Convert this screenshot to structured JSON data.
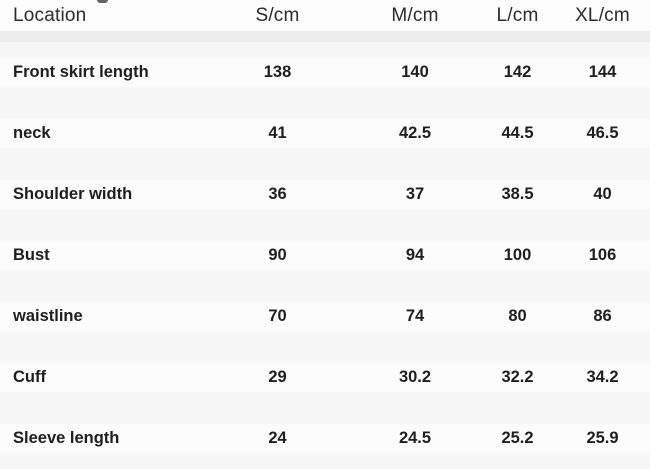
{
  "table": {
    "columns": [
      "Location",
      "S/cm",
      "M/cm",
      "L/cm",
      "XL/cm"
    ],
    "rows": [
      {
        "label": "Front skirt length",
        "values": [
          "138",
          "140",
          "142",
          "144"
        ]
      },
      {
        "label": "neck",
        "values": [
          "41",
          "42.5",
          "44.5",
          "46.5"
        ]
      },
      {
        "label": "Shoulder width",
        "values": [
          "36",
          "37",
          "38.5",
          "40"
        ]
      },
      {
        "label": "Bust",
        "values": [
          "90",
          "94",
          "100",
          "106"
        ]
      },
      {
        "label": "waistline",
        "values": [
          "70",
          "74",
          "80",
          "86"
        ]
      },
      {
        "label": "Cuff",
        "values": [
          "29",
          "30.2",
          "32.2",
          "34.2"
        ]
      },
      {
        "label": "Sleeve length",
        "values": [
          "24",
          "24.5",
          "25.2",
          "25.9"
        ]
      }
    ],
    "colors": {
      "page_background": "#f9f9f9",
      "header_background": "#fdfdfd",
      "separator_band": "#ededed",
      "text": "#1e1e1e"
    }
  }
}
